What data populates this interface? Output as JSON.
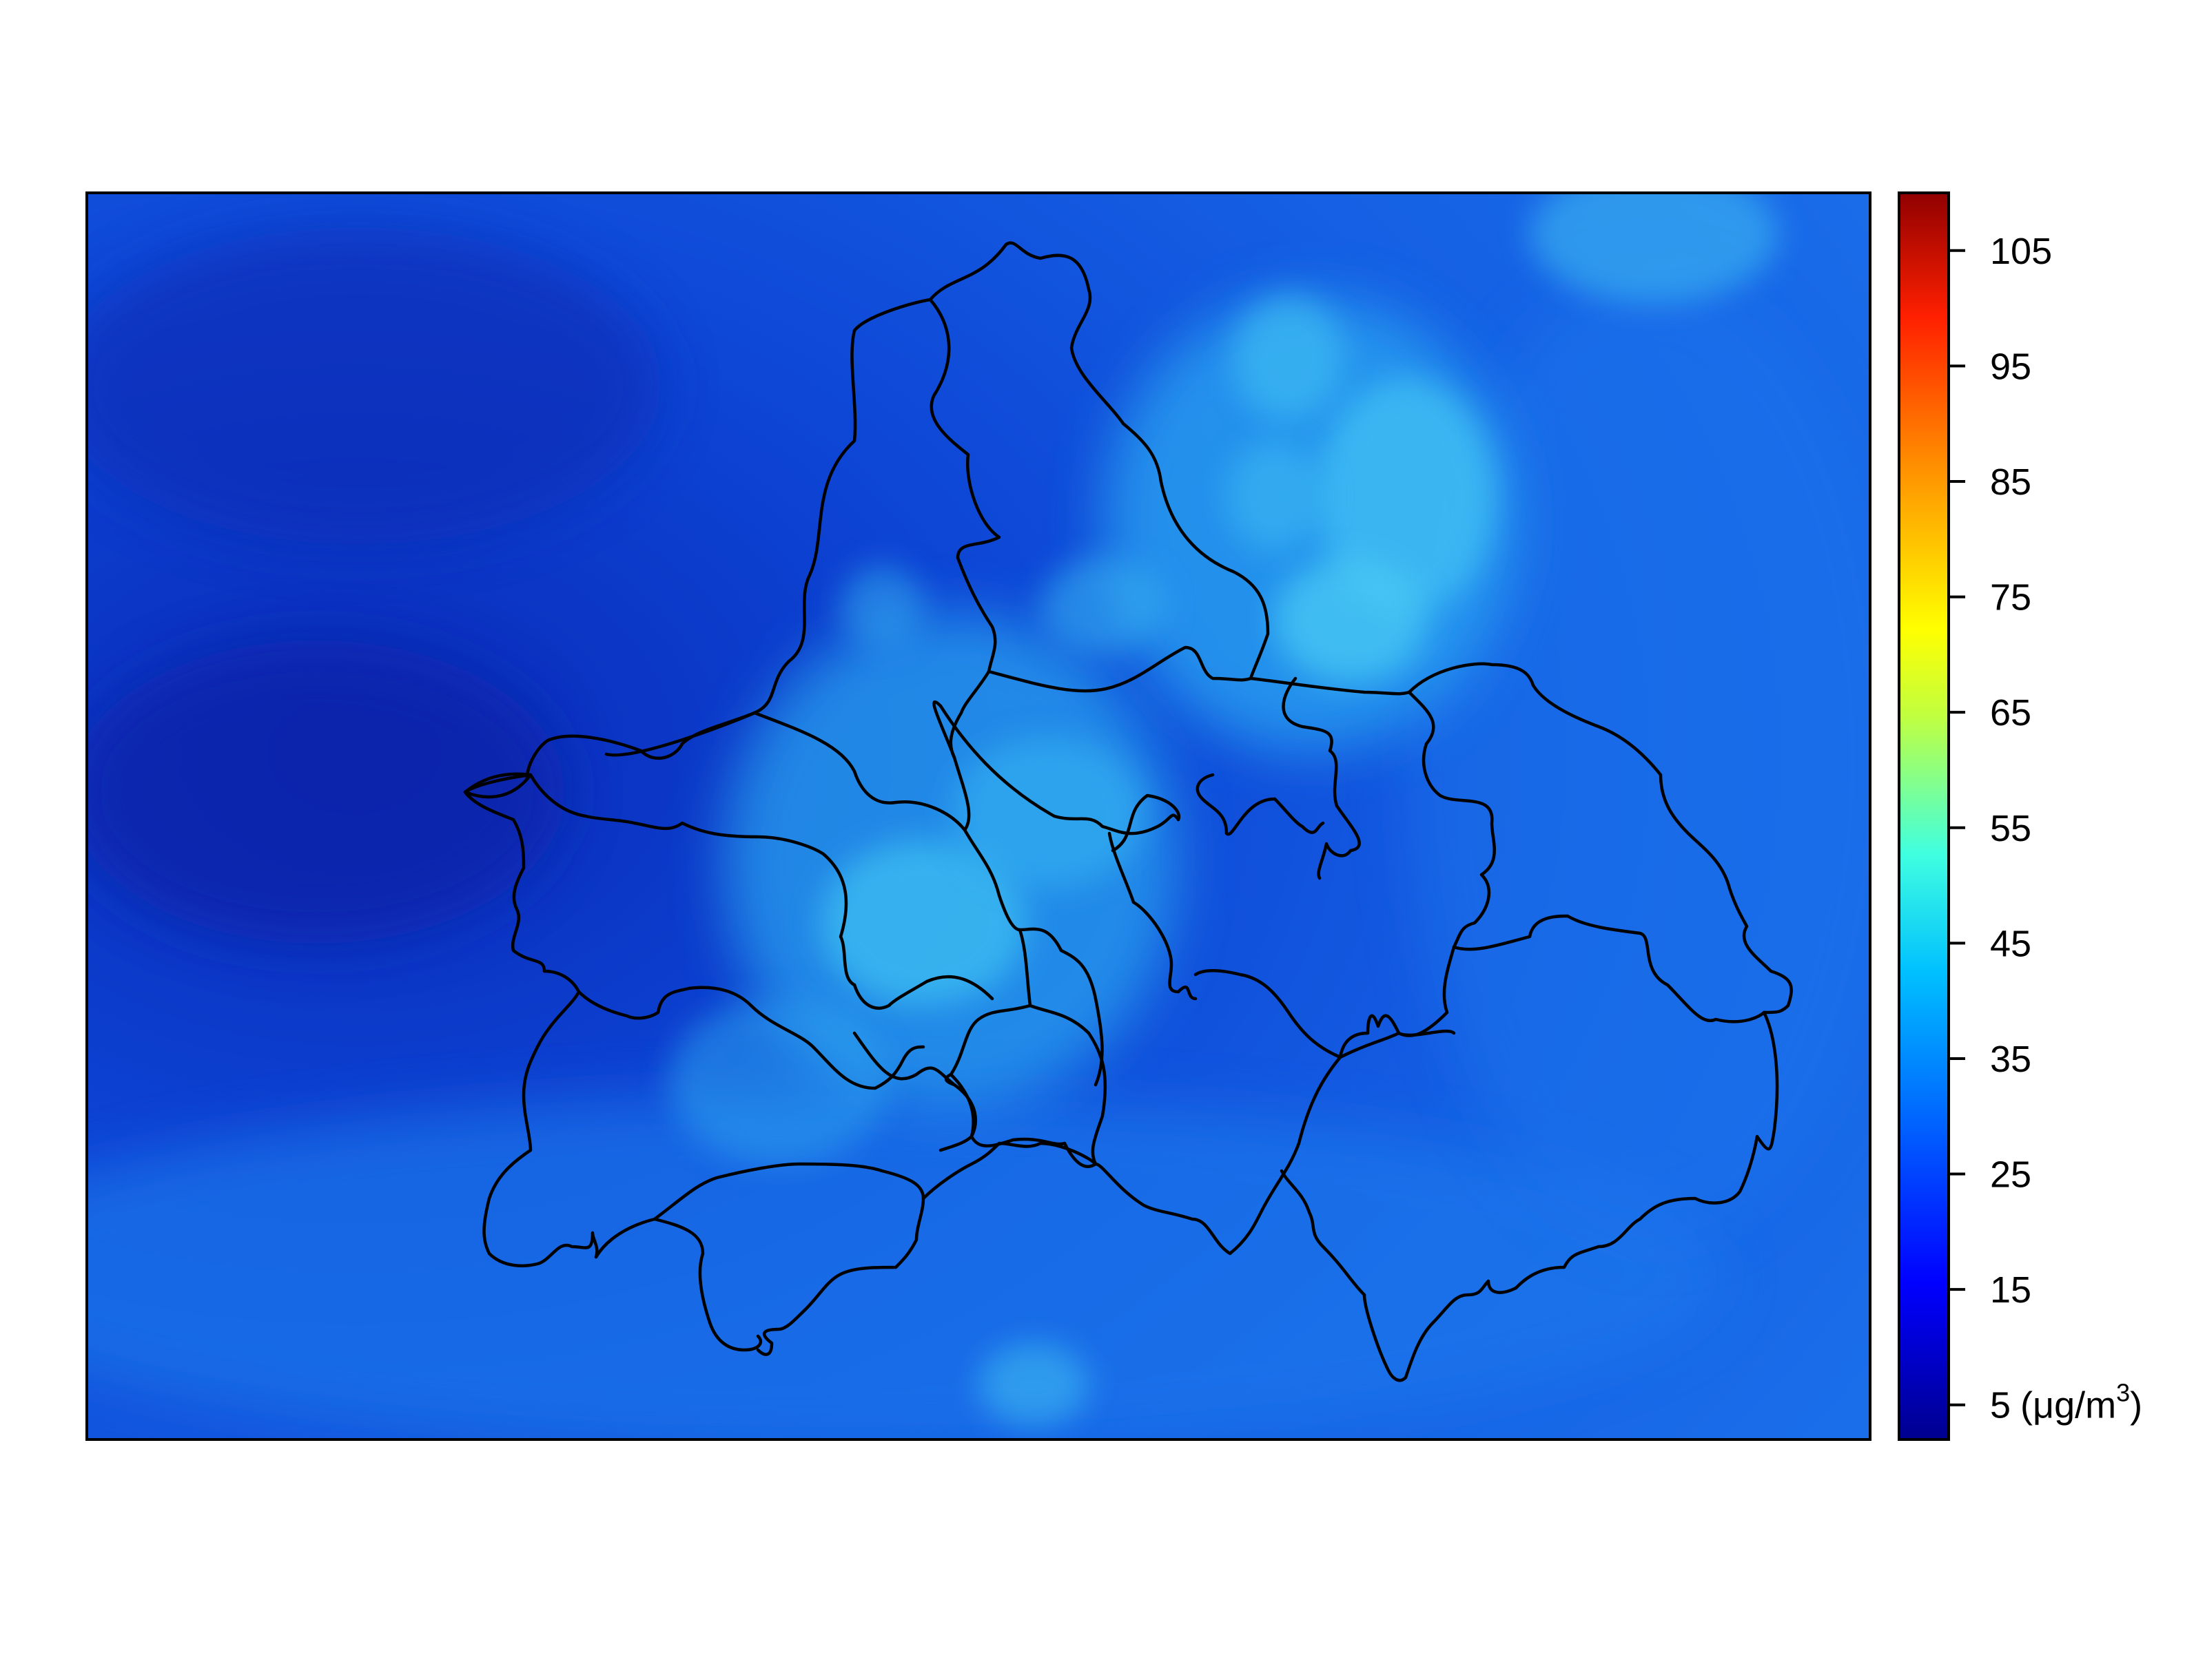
{
  "map": {
    "region_outlines": "district boundaries",
    "background_colors": {
      "low": "#0a36c8",
      "mid": "#1a6ee8",
      "hotspot": "#3fc8f0"
    }
  },
  "colorbar": {
    "ticks": [
      5,
      15,
      25,
      35,
      45,
      55,
      65,
      75,
      85,
      95,
      105
    ],
    "tick_labels": [
      "5",
      "15",
      "25",
      "35",
      "45",
      "55",
      "65",
      "75",
      "85",
      "95",
      "105"
    ],
    "unit": "(μg/m",
    "unit_sup": "3",
    "unit_close": ")",
    "range": [
      2,
      110
    ],
    "colormap": [
      "#00008f",
      "#0000ff",
      "#0080ff",
      "#00ffff",
      "#80ff80",
      "#ffff00",
      "#ff8000",
      "#ff0000",
      "#800000"
    ]
  }
}
